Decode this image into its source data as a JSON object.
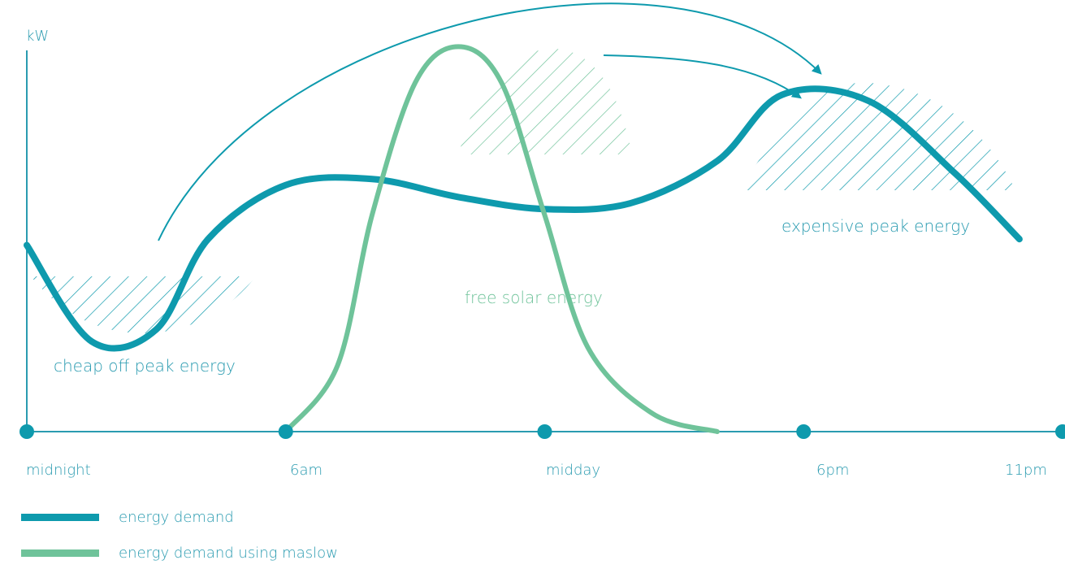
{
  "chart_data": {
    "type": "line",
    "ylabel": "kW",
    "xlabel": "",
    "x_ticks": [
      "midnight",
      "6am",
      "midday",
      "6pm",
      "11pm"
    ],
    "series": [
      {
        "name": "energy demand",
        "color": "#0e9aad",
        "points": [
          [
            0,
            1.55
          ],
          [
            1.5,
            0.75
          ],
          [
            3,
            0.85
          ],
          [
            4.2,
            1.6
          ],
          [
            6,
            2.05
          ],
          [
            8,
            2.1
          ],
          [
            10,
            1.95
          ],
          [
            12,
            1.85
          ],
          [
            14,
            1.9
          ],
          [
            16,
            2.25
          ],
          [
            17.5,
            2.8
          ],
          [
            19.5,
            2.75
          ],
          [
            21.5,
            2.15
          ],
          [
            23,
            1.6
          ]
        ]
      },
      {
        "name": "energy demand using maslow",
        "color": "#6fc39a",
        "points": [
          [
            6,
            0
          ],
          [
            7.2,
            0.55
          ],
          [
            8,
            1.8
          ],
          [
            9,
            2.9
          ],
          [
            10,
            3.2
          ],
          [
            11,
            2.9
          ],
          [
            12,
            1.8
          ],
          [
            13,
            0.7
          ],
          [
            14.5,
            0.15
          ],
          [
            16,
            0
          ]
        ]
      }
    ],
    "annotations": [
      "cheap off peak energy",
      "free solar energy",
      "expensive peak energy"
    ],
    "shifted_regions": [
      {
        "from": "cheap off peak energy",
        "to": "expensive peak energy"
      },
      {
        "from": "free solar energy",
        "to": "expensive peak energy"
      }
    ],
    "grid": false,
    "legend_position": "bottom-left"
  },
  "colors": {
    "axis": "#2a9bb0",
    "demand": "#0e9aad",
    "maslow": "#6fc39a"
  }
}
